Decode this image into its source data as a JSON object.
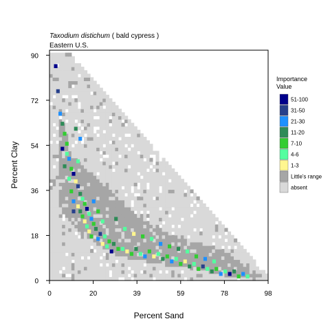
{
  "chart_data": {
    "type": "heatmap",
    "title_species": "Taxodium distichum",
    "title_common": " ( bald cypress )",
    "subtitle": "Eastern U.S.",
    "xlabel": "Percent Sand",
    "ylabel": "Percent Clay",
    "xlim": [
      0,
      98
    ],
    "ylim": [
      0,
      92
    ],
    "xticks": [
      {
        "value": 0,
        "label": "0"
      },
      {
        "value": 19.6,
        "label": "20"
      },
      {
        "value": 39.2,
        "label": "39"
      },
      {
        "value": 58.8,
        "label": "59"
      },
      {
        "value": 78.4,
        "label": "78"
      },
      {
        "value": 98,
        "label": "98"
      }
    ],
    "yticks": [
      {
        "value": 0,
        "label": "0"
      },
      {
        "value": 18,
        "label": "18"
      },
      {
        "value": 36,
        "label": "36"
      },
      {
        "value": 54,
        "label": "54"
      },
      {
        "value": 72,
        "label": "72"
      },
      {
        "value": 90,
        "label": "90"
      }
    ],
    "legend_title": [
      "Importance",
      "Value"
    ],
    "legend_placement": "right",
    "legend": [
      {
        "label": "51-100",
        "color": "#00008b"
      },
      {
        "label": "31-50",
        "color": "#27408b"
      },
      {
        "label": "21-30",
        "color": "#1e90ff"
      },
      {
        "label": "11-20",
        "color": "#2e8b57"
      },
      {
        "label": "7-10",
        "color": "#32cd32"
      },
      {
        "label": "4-6",
        "color": "#54ff9f"
      },
      {
        "label": "1-3",
        "color": "#fff68f"
      },
      {
        "label": "Little's range",
        "color": "#a6a6a6"
      },
      {
        "label": "absent",
        "color": "#d9d9d9"
      }
    ],
    "grid": false,
    "cell_size": [
      1.4,
      1.4
    ],
    "regions": {
      "soil_triangle": {
        "vertices": [
          [
            0,
            0
          ],
          [
            0,
            100
          ],
          [
            100,
            0
          ]
        ],
        "class": "absent"
      },
      "littles_range_band": {
        "vertices": [
          [
            5,
            68
          ],
          [
            10,
            50
          ],
          [
            45,
            22
          ],
          [
            78,
            12
          ],
          [
            95,
            2
          ],
          [
            85,
            1
          ],
          [
            60,
            5
          ],
          [
            30,
            10
          ],
          [
            12,
            20
          ],
          [
            4,
            30
          ]
        ],
        "class": "Little's range"
      }
    },
    "importance_points": [
      [
        2,
        85,
        "51-100"
      ],
      [
        3,
        75,
        "31-50"
      ],
      [
        4,
        66,
        "21-30"
      ],
      [
        5,
        62,
        "11-20"
      ],
      [
        6,
        58,
        "7-10"
      ],
      [
        5,
        52,
        "51-100"
      ],
      [
        7,
        50,
        "4-6"
      ],
      [
        8,
        48,
        "21-30"
      ],
      [
        6,
        45,
        "11-20"
      ],
      [
        9,
        44,
        "7-10"
      ],
      [
        10,
        42,
        "51-100"
      ],
      [
        8,
        40,
        "4-6"
      ],
      [
        11,
        39,
        "1-3"
      ],
      [
        12,
        37,
        "31-50"
      ],
      [
        9,
        35,
        "7-10"
      ],
      [
        13,
        34,
        "11-20"
      ],
      [
        14,
        32,
        "4-6"
      ],
      [
        10,
        31,
        "21-30"
      ],
      [
        15,
        30,
        "7-10"
      ],
      [
        12,
        29,
        "1-3"
      ],
      [
        16,
        28,
        "51-100"
      ],
      [
        13,
        27,
        "11-20"
      ],
      [
        17,
        26,
        "4-6"
      ],
      [
        14,
        25,
        "7-10"
      ],
      [
        18,
        24,
        "21-30"
      ],
      [
        15,
        23,
        "1-3"
      ],
      [
        19,
        22,
        "7-10"
      ],
      [
        16,
        21,
        "4-6"
      ],
      [
        20,
        20,
        "11-20"
      ],
      [
        17,
        19,
        "1-3"
      ],
      [
        22,
        18,
        "31-50"
      ],
      [
        18,
        17,
        "7-10"
      ],
      [
        24,
        17,
        "4-6"
      ],
      [
        21,
        16,
        "21-30"
      ],
      [
        26,
        15,
        "7-10"
      ],
      [
        23,
        14,
        "1-3"
      ],
      [
        28,
        14,
        "11-20"
      ],
      [
        25,
        13,
        "4-6"
      ],
      [
        30,
        12,
        "7-10"
      ],
      [
        27,
        11,
        "51-100"
      ],
      [
        32,
        12,
        "4-6"
      ],
      [
        34,
        11,
        "1-3"
      ],
      [
        36,
        10,
        "7-10"
      ],
      [
        38,
        12,
        "11-20"
      ],
      [
        40,
        10,
        "4-6"
      ],
      [
        42,
        9,
        "21-30"
      ],
      [
        44,
        11,
        "7-10"
      ],
      [
        46,
        9,
        "1-3"
      ],
      [
        48,
        10,
        "4-6"
      ],
      [
        50,
        8,
        "11-20"
      ],
      [
        52,
        9,
        "7-10"
      ],
      [
        54,
        7,
        "21-30"
      ],
      [
        56,
        8,
        "4-6"
      ],
      [
        58,
        6,
        "7-10"
      ],
      [
        60,
        7,
        "1-3"
      ],
      [
        62,
        5,
        "11-20"
      ],
      [
        64,
        6,
        "4-6"
      ],
      [
        66,
        4,
        "7-10"
      ],
      [
        68,
        5,
        "31-50"
      ],
      [
        70,
        4,
        "4-6"
      ],
      [
        72,
        3,
        "11-20"
      ],
      [
        74,
        4,
        "7-10"
      ],
      [
        76,
        2,
        "21-30"
      ],
      [
        78,
        3,
        "4-6"
      ],
      [
        80,
        2,
        "51-100"
      ],
      [
        82,
        3,
        "11-20"
      ],
      [
        84,
        1,
        "7-10"
      ],
      [
        86,
        2,
        "21-30"
      ],
      [
        88,
        1,
        "4-6"
      ],
      [
        11,
        60,
        "11-20"
      ],
      [
        13,
        56,
        "21-30"
      ],
      [
        7,
        54,
        "7-10"
      ],
      [
        12,
        47,
        "4-6"
      ],
      [
        10,
        27,
        "31-50"
      ],
      [
        19,
        31,
        "21-30"
      ],
      [
        21,
        27,
        "7-10"
      ],
      [
        23,
        23,
        "4-6"
      ],
      [
        29,
        24,
        "11-20"
      ],
      [
        33,
        20,
        "4-6"
      ],
      [
        37,
        18,
        "1-3"
      ],
      [
        41,
        17,
        "7-10"
      ],
      [
        45,
        16,
        "4-6"
      ],
      [
        49,
        14,
        "21-30"
      ],
      [
        53,
        13,
        "7-10"
      ],
      [
        57,
        12,
        "11-20"
      ],
      [
        61,
        11,
        "4-6"
      ],
      [
        65,
        9,
        "7-10"
      ],
      [
        69,
        8,
        "21-30"
      ],
      [
        73,
        7,
        "4-6"
      ]
    ]
  }
}
